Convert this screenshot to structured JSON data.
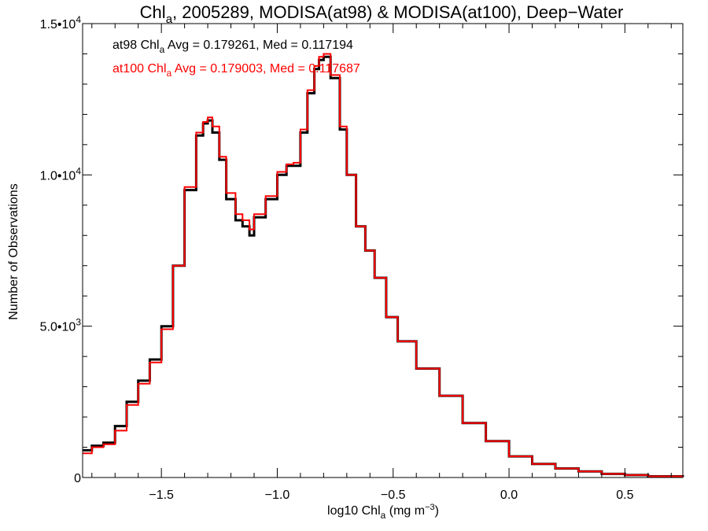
{
  "chart_data": {
    "type": "line",
    "step": true,
    "title_parts": {
      "pre": "Chl",
      "sub": "a",
      "post": ", 2005289, MODISA(at98) & MODISA(at100), Deep−Water"
    },
    "xlabel_parts": {
      "pre": "log10 Chl",
      "sub": "a",
      "post": " (mg m",
      "sup": "−3",
      "end": ")"
    },
    "ylabel": "Number of Observations",
    "xlim": [
      -1.84,
      0.75
    ],
    "ylim": [
      0,
      15000
    ],
    "x_ticks": [
      {
        "value": -1.5,
        "label": "−1.5"
      },
      {
        "value": -1.0,
        "label": "−1.0"
      },
      {
        "value": -0.5,
        "label": "−0.5"
      },
      {
        "value": 0.0,
        "label": "0.0"
      },
      {
        "value": 0.5,
        "label": "0.5"
      }
    ],
    "y_ticks": [
      {
        "value": 0,
        "mant": "0",
        "exp": ""
      },
      {
        "value": 5000,
        "mant": "5.0•10",
        "exp": "3"
      },
      {
        "value": 10000,
        "mant": "1.0•10",
        "exp": "4"
      },
      {
        "value": 15000,
        "mant": "1.5•10",
        "exp": "4"
      }
    ],
    "annotations": [
      {
        "color": "#000000",
        "pre": "at98 Chl",
        "sub": "a",
        "post": " Avg = 0.179261, Med = 0.117194"
      },
      {
        "color": "#ff0000",
        "pre": "at100 Chl",
        "sub": "a",
        "post": " Avg = 0.179003, Med = 0.117687"
      }
    ],
    "series": [
      {
        "color": "#000000",
        "x": [
          -1.84,
          -1.8,
          -1.75,
          -1.7,
          -1.65,
          -1.6,
          -1.55,
          -1.5,
          -1.45,
          -1.4,
          -1.35,
          -1.32,
          -1.3,
          -1.28,
          -1.25,
          -1.22,
          -1.18,
          -1.15,
          -1.12,
          -1.1,
          -1.05,
          -1.0,
          -0.96,
          -0.93,
          -0.9,
          -0.87,
          -0.84,
          -0.82,
          -0.8,
          -0.77,
          -0.73,
          -0.7,
          -0.66,
          -0.62,
          -0.58,
          -0.53,
          -0.48,
          -0.4,
          -0.3,
          -0.2,
          -0.1,
          0.0,
          0.1,
          0.2,
          0.3,
          0.4,
          0.5,
          0.6,
          0.75
        ],
        "y": [
          900,
          1050,
          1150,
          1700,
          2500,
          3200,
          3900,
          5000,
          7000,
          9500,
          11300,
          11700,
          11800,
          11400,
          10500,
          9200,
          8500,
          8300,
          8000,
          8600,
          9200,
          10000,
          10300,
          10300,
          11400,
          12700,
          13500,
          13800,
          13900,
          13200,
          11500,
          10000,
          8300,
          7500,
          6600,
          5300,
          4500,
          3600,
          2700,
          1800,
          1200,
          700,
          450,
          300,
          200,
          120,
          80,
          40,
          20
        ]
      },
      {
        "color": "#ff0000",
        "x": [
          -1.84,
          -1.8,
          -1.75,
          -1.7,
          -1.65,
          -1.6,
          -1.55,
          -1.5,
          -1.45,
          -1.4,
          -1.35,
          -1.32,
          -1.3,
          -1.28,
          -1.25,
          -1.22,
          -1.18,
          -1.15,
          -1.12,
          -1.1,
          -1.05,
          -1.0,
          -0.96,
          -0.93,
          -0.9,
          -0.87,
          -0.84,
          -0.82,
          -0.8,
          -0.77,
          -0.73,
          -0.7,
          -0.66,
          -0.62,
          -0.58,
          -0.53,
          -0.48,
          -0.4,
          -0.3,
          -0.2,
          -0.1,
          0.0,
          0.1,
          0.2,
          0.3,
          0.4,
          0.5,
          0.6,
          0.75
        ],
        "y": [
          800,
          1000,
          1100,
          1550,
          2400,
          3100,
          3800,
          4900,
          7000,
          9600,
          11400,
          11750,
          11900,
          11600,
          10600,
          9400,
          8700,
          8500,
          8200,
          8700,
          9300,
          10100,
          10350,
          10400,
          11500,
          12800,
          13600,
          13900,
          14000,
          13300,
          11600,
          10000,
          8300,
          7500,
          6600,
          5300,
          4500,
          3600,
          2700,
          1800,
          1200,
          700,
          450,
          300,
          200,
          120,
          80,
          40,
          20
        ]
      }
    ]
  }
}
